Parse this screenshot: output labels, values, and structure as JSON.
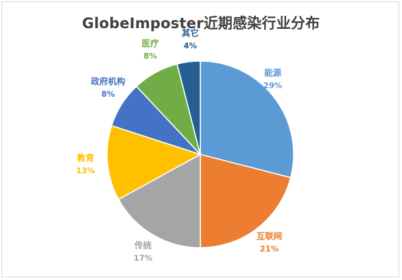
{
  "chart_data": {
    "type": "pie",
    "title": "GlobeImposter近期感染行业分布",
    "start_angle_deg": 0,
    "direction": "clockwise",
    "slices": [
      {
        "label": "能源",
        "value": 29,
        "display": "29%",
        "color": "#5b9bd5"
      },
      {
        "label": "互联网",
        "value": 21,
        "display": "21%",
        "color": "#ed7d31"
      },
      {
        "label": "传统",
        "value": 17,
        "display": "17%",
        "color": "#a5a5a5"
      },
      {
        "label": "教育",
        "value": 13,
        "display": "13%",
        "color": "#ffc000"
      },
      {
        "label": "政府机构",
        "value": 8,
        "display": "8%",
        "color": "#4472c4"
      },
      {
        "label": "医疗",
        "value": 8,
        "display": "8%",
        "color": "#70ad47"
      },
      {
        "label": "其它",
        "value": 4,
        "display": "4%",
        "color": "#255e91"
      }
    ],
    "legend": "none",
    "data_labels": "outside"
  }
}
